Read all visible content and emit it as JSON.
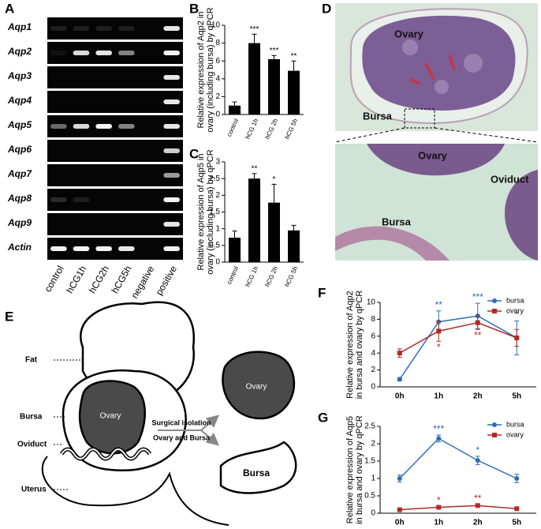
{
  "panel_letters": [
    "A",
    "B",
    "C",
    "D",
    "E",
    "F",
    "G"
  ],
  "gel": {
    "genes": [
      "Aqp1",
      "Aqp2",
      "Aqp3",
      "Aqp4",
      "Aqp5",
      "Aqp6",
      "Aqp7",
      "Aqp8",
      "Aqp9",
      "Actin"
    ],
    "lanes": [
      "control",
      "hCG1h",
      "hCG2h",
      "hCG5h",
      "negative",
      "positive"
    ]
  },
  "histology": {
    "top": [
      "Ovary",
      "Bursa"
    ],
    "bottom": [
      "Ovary",
      "Oviduct",
      "Bursa"
    ]
  },
  "schematic": {
    "labels": [
      "Fat",
      "Bursa",
      "Oviduct",
      "Uterus"
    ],
    "ovary": "Ovary",
    "arrow": [
      "Surgical isolation",
      "Ovary and Bursa"
    ],
    "isolated": [
      "Ovary",
      "Bursa"
    ]
  },
  "chart_data": [
    {
      "type": "bar",
      "ylabel": [
        "Relative expression of Aqp2 in",
        "ovary (including bursa) by qPCR"
      ],
      "categories": [
        "control",
        "hCG 1h",
        "hCG 2h",
        "hCG 5h"
      ],
      "values": [
        1.0,
        8.0,
        6.2,
        4.9
      ],
      "errors": [
        0.4,
        1.0,
        0.4,
        1.1
      ],
      "significance": [
        null,
        "***",
        "***",
        "**"
      ],
      "color": "#000000",
      "ylim": [
        0,
        10
      ],
      "yticks": [
        0,
        2,
        4,
        6,
        8,
        10
      ]
    },
    {
      "type": "bar",
      "ylabel": [
        "Relative expression of Aqp5 in",
        "ovary (including bursa) by qPCR"
      ],
      "categories": [
        "control",
        "hCG 1h",
        "hCG 2h",
        "hCG 5h"
      ],
      "values": [
        0.73,
        2.5,
        1.78,
        0.95
      ],
      "errors": [
        0.2,
        0.15,
        0.55,
        0.15
      ],
      "significance": [
        null,
        "**",
        "*",
        null
      ],
      "color": "#000000",
      "ylim": [
        0,
        3
      ],
      "yticks": [
        0,
        0.5,
        1,
        1.5,
        2,
        2.5,
        3
      ]
    },
    {
      "type": "line",
      "ylabel": [
        "Relative expression of Aqp2",
        "in bursa and ovary by qPCR"
      ],
      "categories": [
        "0h",
        "1h",
        "2h",
        "5h"
      ],
      "legend": "upper right",
      "series": [
        {
          "name": "bursa",
          "color": "#2e6db4",
          "marker": "circle",
          "values": [
            0.9,
            7.7,
            8.4,
            5.8
          ],
          "errors": [
            0.2,
            1.3,
            1.5,
            2.0
          ],
          "significance": [
            null,
            "**",
            "***",
            "*"
          ]
        },
        {
          "name": "ovary",
          "color": "#b02a2a",
          "marker": "square",
          "values": [
            4.0,
            6.6,
            7.6,
            5.8
          ],
          "errors": [
            0.5,
            1.2,
            0.8,
            1.0
          ],
          "significance": [
            null,
            "*",
            "**",
            null
          ]
        }
      ],
      "ylim": [
        0,
        10
      ],
      "yticks": [
        0,
        2,
        4,
        6,
        8,
        10
      ]
    },
    {
      "type": "line",
      "ylabel": [
        "Relative expression of Aqp5",
        "in bursa and ovary by qPCR"
      ],
      "categories": [
        "0h",
        "1h",
        "2h",
        "5h"
      ],
      "legend": "upper right",
      "series": [
        {
          "name": "bursa",
          "color": "#2e6db4",
          "marker": "circle",
          "values": [
            1.0,
            2.15,
            1.52,
            1.0
          ],
          "errors": [
            0.1,
            0.1,
            0.12,
            0.12
          ],
          "significance": [
            null,
            "***",
            "*",
            null
          ]
        },
        {
          "name": "ovary",
          "color": "#b02a2a",
          "marker": "square",
          "values": [
            0.1,
            0.17,
            0.22,
            0.13
          ],
          "errors": [
            0.02,
            0.03,
            0.03,
            0.02
          ],
          "significance": [
            null,
            "*",
            "**",
            null
          ]
        }
      ],
      "ylim": [
        0,
        2.5
      ],
      "yticks": [
        0,
        0.5,
        1,
        1.5,
        2,
        2.5
      ]
    }
  ]
}
